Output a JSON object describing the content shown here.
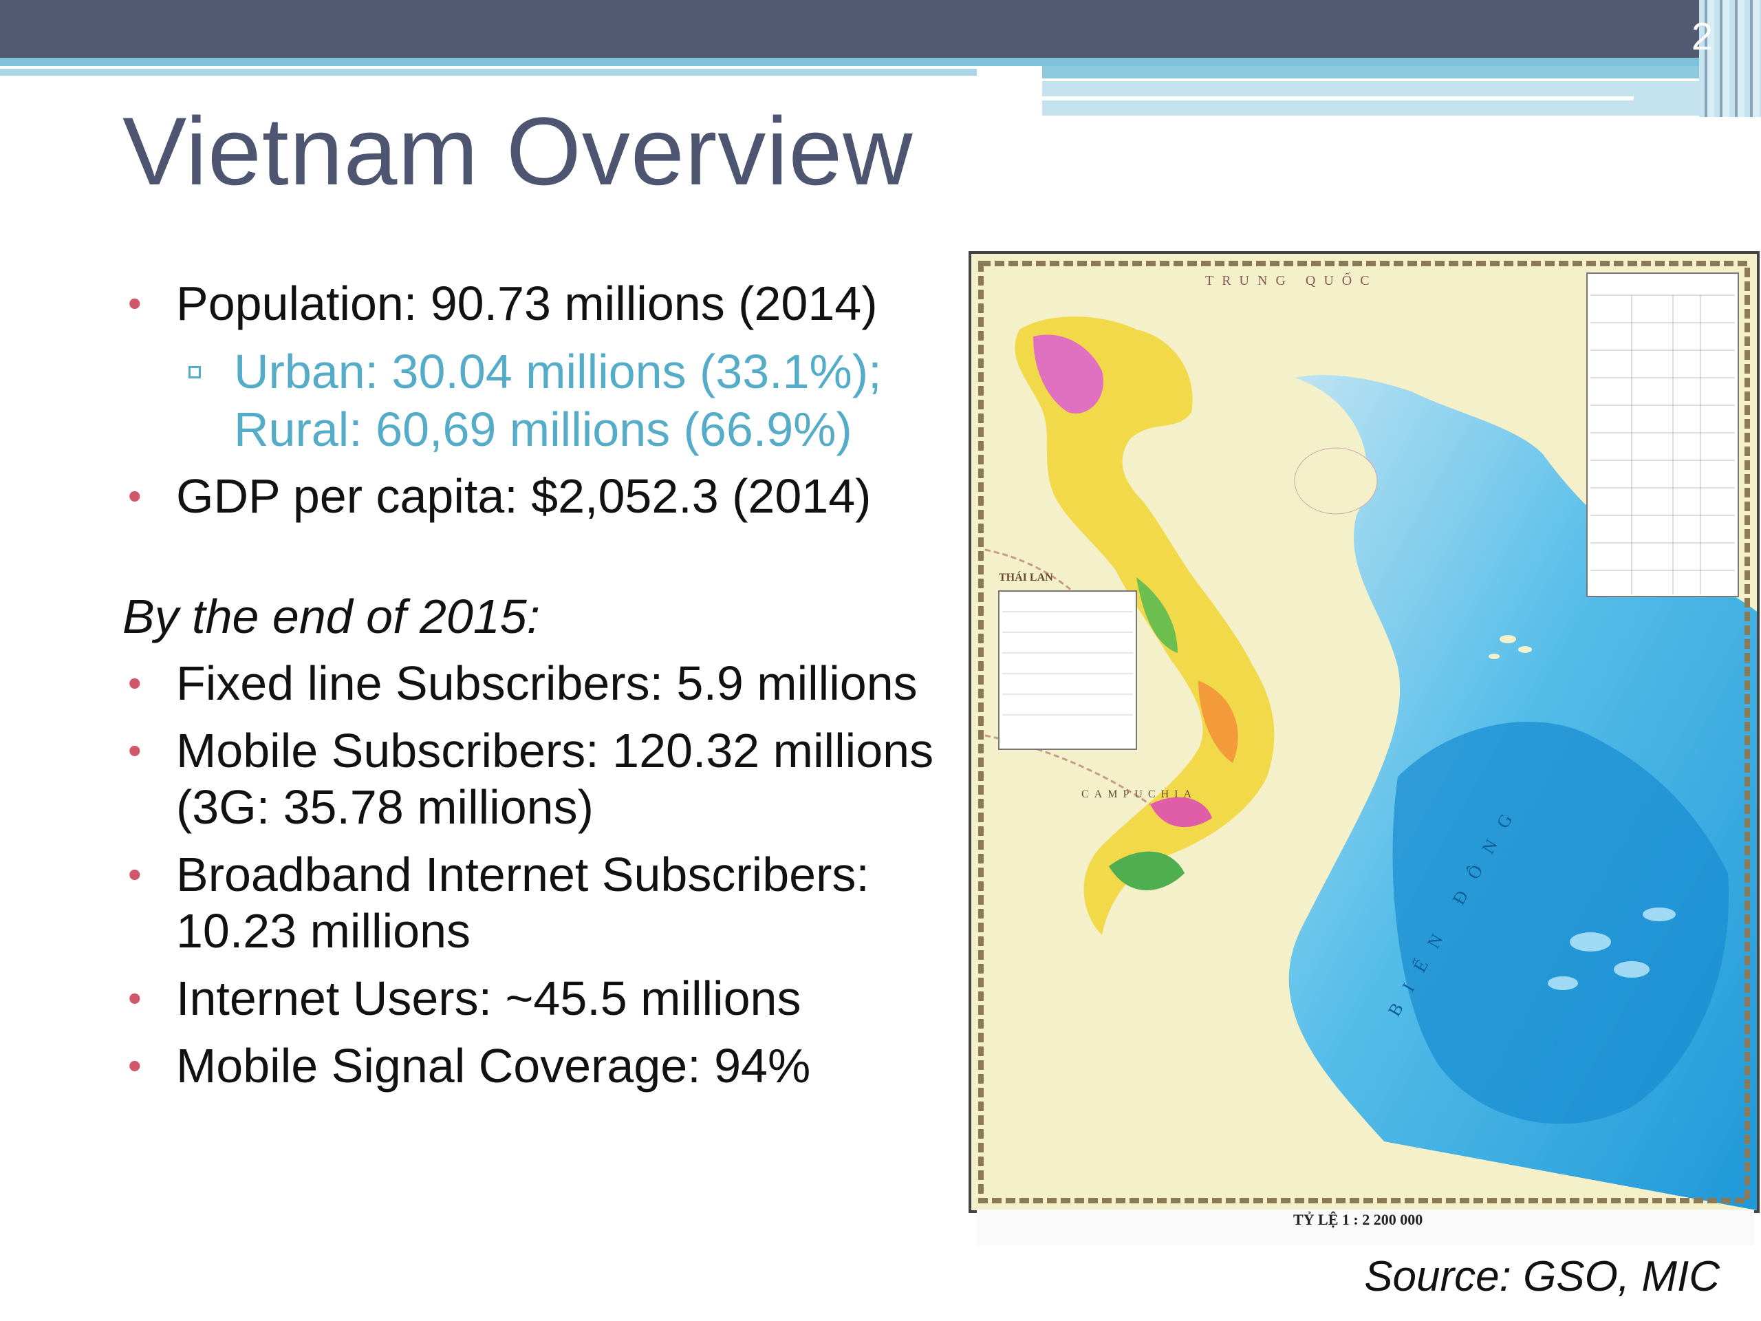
{
  "slide": {
    "number": "2",
    "title": "Vietnam Overview"
  },
  "bullets_top": [
    {
      "text": "Population: 90.73 millions (2014)"
    }
  ],
  "sub_bullet": {
    "line1": "Urban: 30.04 millions (33.1%);",
    "line2": "Rural: 60,69 millions (66.9%)"
  },
  "gdp": {
    "text": "GDP per capita: $2,052.3 (2014)"
  },
  "section_heading": "By the end of 2015:",
  "bullets_bottom": [
    {
      "line1": "Fixed line Subscribers: 5.9 millions",
      "line2": ""
    },
    {
      "line1": "Mobile Subscribers: 120.32 millions",
      "line2": "(3G: 35.78 millions)"
    },
    {
      "line1": "Broadband Internet Subscribers:",
      "line2": "10.23 millions"
    },
    {
      "line1": "Internet Users: ~45.5 millions",
      "line2": ""
    },
    {
      "line1": "Mobile Signal Coverage: 94%",
      "line2": ""
    }
  ],
  "map": {
    "label_trung_quoc": "TRUNG QUỐC",
    "label_thai_lan": "THÁI LAN",
    "label_campuchia": "CAMPUCHIA",
    "label_bien_dong": "BIỂN ĐÔNG",
    "scale": "TỶ LỆ 1 : 2 200 000"
  },
  "source": "Source: GSO, MIC",
  "colors": {
    "accent": "#525a72",
    "bullet": "#d0576a",
    "sub": "#55acc8",
    "sea": "#2fa7e0"
  }
}
